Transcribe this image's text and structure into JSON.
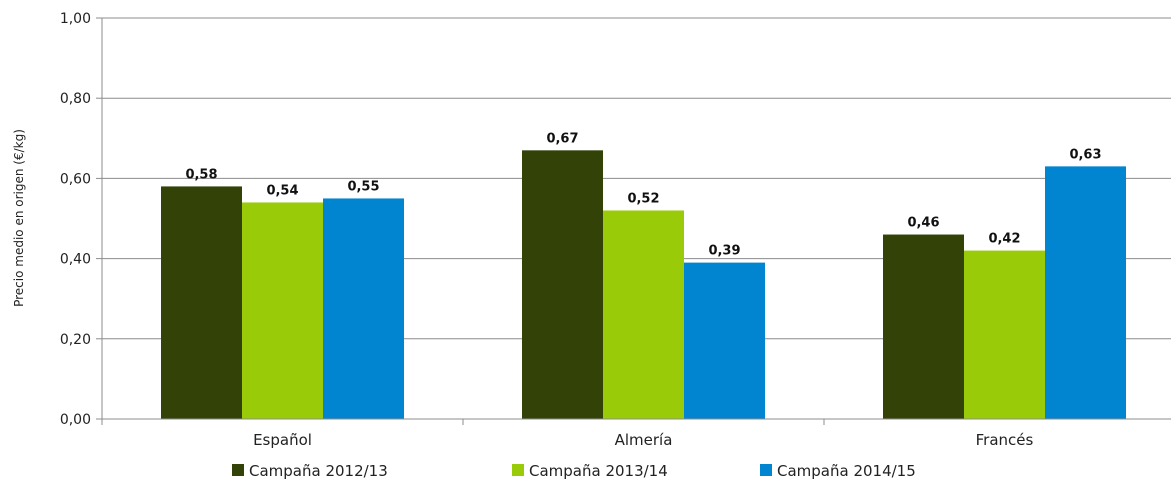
{
  "chart_data": {
    "type": "bar",
    "title": "",
    "xlabel": "",
    "ylabel": "Precio medio en origen (€/kg)",
    "categories": [
      "Español",
      "Almería",
      "Francés"
    ],
    "series": [
      {
        "name": "Campaña 2012/13",
        "color": "#334207",
        "values": [
          0.58,
          0.67,
          0.46
        ],
        "labels": [
          "0,58",
          "0,67",
          "0,46"
        ]
      },
      {
        "name": "Campaña 2013/14",
        "color": "#9ACB08",
        "values": [
          0.54,
          0.52,
          0.42
        ],
        "labels": [
          "0,54",
          "0,52",
          "0,42"
        ]
      },
      {
        "name": "Campaña 2014/15",
        "color": "#0185D0",
        "values": [
          0.55,
          0.39,
          0.63
        ],
        "labels": [
          "0,55",
          "0,39",
          "0,63"
        ]
      }
    ],
    "ylim": [
      0,
      1
    ],
    "yticks": [
      0,
      0.2,
      0.4,
      0.6,
      0.8,
      1.0
    ],
    "ytick_labels": [
      "0,00",
      "0,20",
      "0,40",
      "0,60",
      "0,80",
      "1,00"
    ],
    "grid": true,
    "legend_position": "bottom"
  }
}
